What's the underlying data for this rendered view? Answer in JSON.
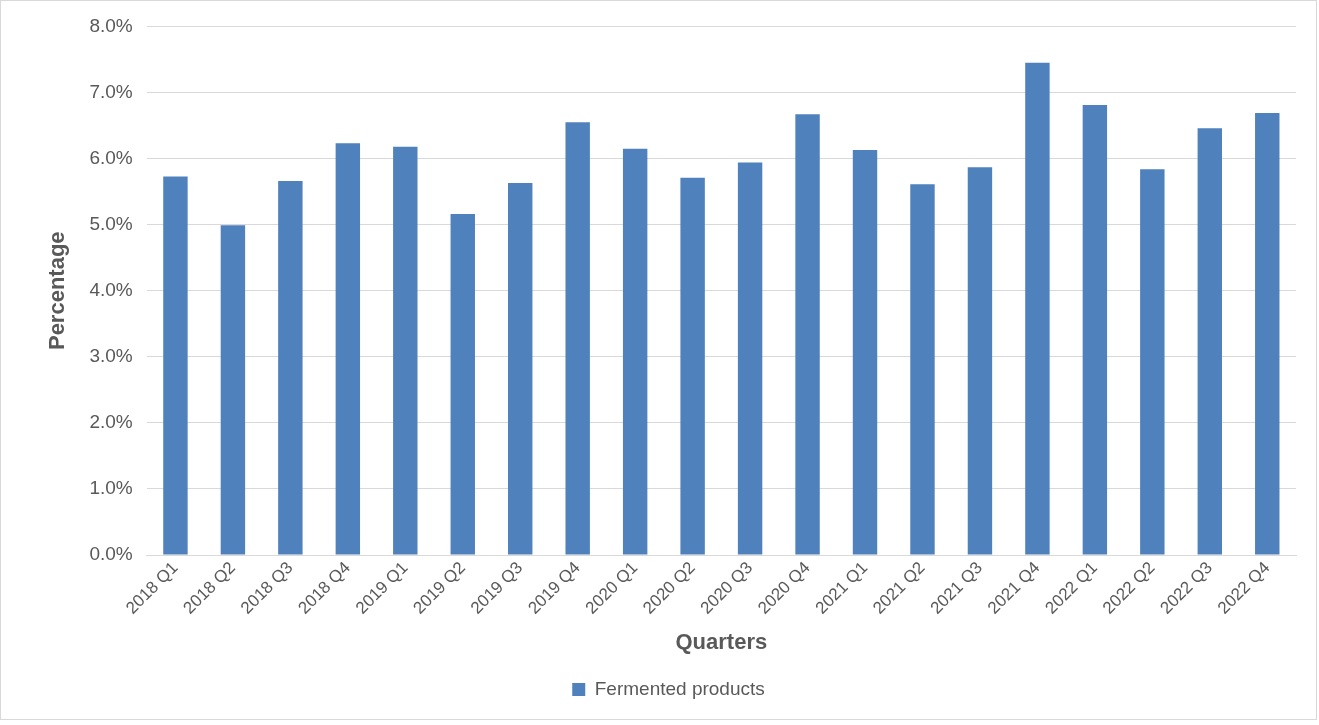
{
  "chart_data": {
    "type": "bar",
    "xlabel": "Quarters",
    "ylabel": "Percentage",
    "categories": [
      "2018 Q1",
      "2018 Q2",
      "2018 Q3",
      "2018 Q4",
      "2019 Q1",
      "2019 Q2",
      "2019 Q3",
      "2019 Q4",
      "2020 Q1",
      "2020 Q2",
      "2020 Q3",
      "2020 Q4",
      "2021 Q1",
      "2021 Q2",
      "2021 Q3",
      "2021 Q4",
      "2022 Q1",
      "2022 Q2",
      "2022 Q3",
      "2022 Q4"
    ],
    "series": [
      {
        "name": "Fermented products",
        "color": "#4f81bd",
        "values": [
          5.73,
          4.99,
          5.66,
          6.23,
          6.18,
          5.16,
          5.63,
          6.55,
          6.15,
          5.71,
          5.94,
          6.67,
          6.13,
          5.61,
          5.87,
          7.45,
          6.81,
          5.84,
          6.46,
          6.69
        ]
      }
    ],
    "ylim": [
      0,
      8
    ],
    "yticks": [
      {
        "value": 0,
        "label": "0.0%"
      },
      {
        "value": 1,
        "label": "1.0%"
      },
      {
        "value": 2,
        "label": "2.0%"
      },
      {
        "value": 3,
        "label": "3.0%"
      },
      {
        "value": 4,
        "label": "4.0%"
      },
      {
        "value": 5,
        "label": "5.0%"
      },
      {
        "value": 6,
        "label": "6.0%"
      },
      {
        "value": 7,
        "label": "7.0%"
      },
      {
        "value": 8,
        "label": "8.0%"
      }
    ],
    "grid": "y",
    "legend": "bottom"
  }
}
